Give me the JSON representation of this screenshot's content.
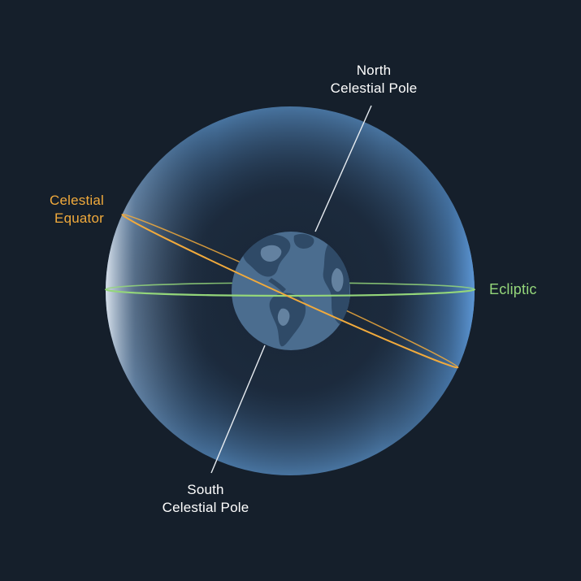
{
  "labels": {
    "north_pole": [
      "North",
      "Celestial Pole"
    ],
    "south_pole": [
      "South",
      "Celestial Pole"
    ],
    "celestial_equator": [
      "Celestial",
      "Equator"
    ],
    "ecliptic": "Ecliptic"
  },
  "colors": {
    "background": "#151f2b",
    "celestial_equator": "#f1aa3c",
    "ecliptic": "#94d67a",
    "pole_axis": "#ffffff",
    "earth": "#4b6d8f"
  }
}
